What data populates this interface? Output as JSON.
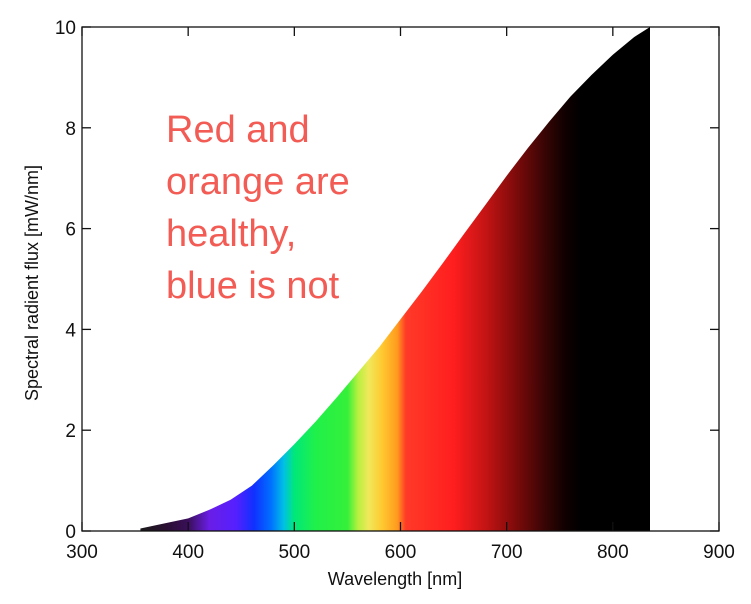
{
  "chart_data": {
    "type": "area",
    "title": "",
    "xlabel": "Wavelength [nm]",
    "ylabel": "Spectral radient flux [mW/nm]",
    "xlim": [
      300,
      900
    ],
    "ylim": [
      0,
      10
    ],
    "xticks": [
      300,
      400,
      500,
      600,
      700,
      800,
      900
    ],
    "yticks": [
      0,
      2,
      4,
      6,
      8,
      10
    ],
    "grid": false,
    "fill": "visible-spectrum colour gradient (violet, blue, green, yellow, orange, red, fading to black)",
    "x": [
      355,
      380,
      400,
      420,
      440,
      460,
      480,
      500,
      520,
      540,
      560,
      580,
      600,
      620,
      640,
      660,
      680,
      700,
      720,
      740,
      760,
      780,
      800,
      820,
      835
    ],
    "values": [
      0.05,
      0.16,
      0.25,
      0.42,
      0.62,
      0.9,
      1.3,
      1.72,
      2.17,
      2.65,
      3.15,
      3.65,
      4.2,
      4.75,
      5.32,
      5.9,
      6.47,
      7.05,
      7.6,
      8.12,
      8.62,
      9.05,
      9.45,
      9.8,
      10.0
    ],
    "annotation": {
      "lines": [
        "Red and",
        "orange are",
        "healthy,",
        "blue is not"
      ],
      "color": "#f25c54"
    }
  },
  "colors": {
    "axis": "#111111",
    "annotation": "#f25c54",
    "background": "#ffffff"
  }
}
